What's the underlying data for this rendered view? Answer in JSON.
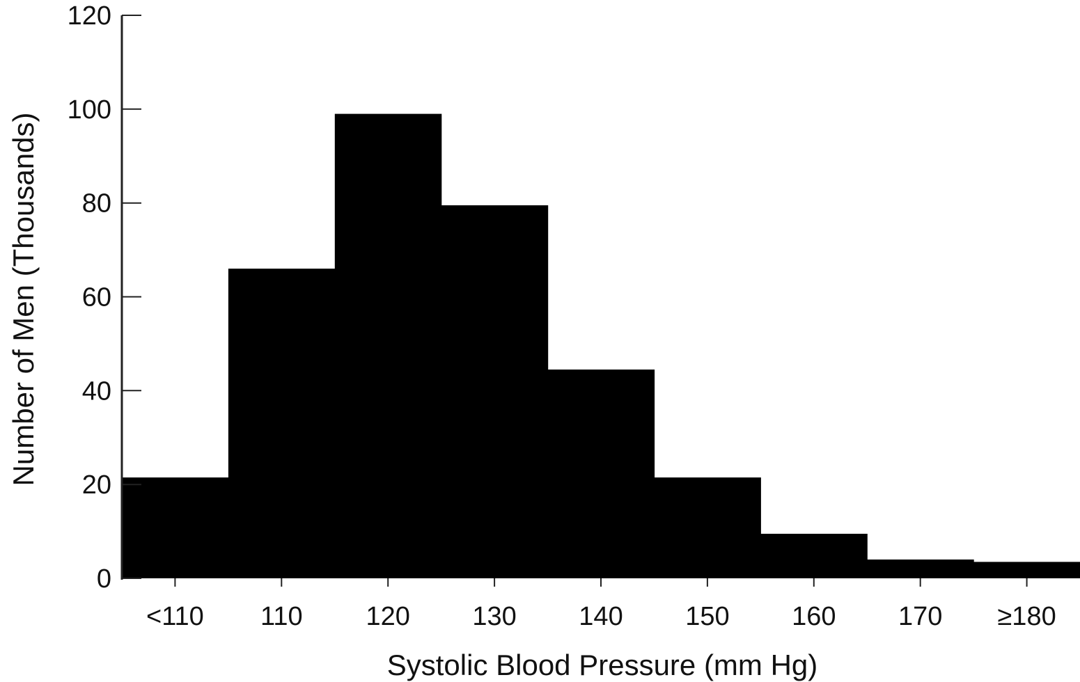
{
  "chart_data": {
    "type": "bar",
    "title": "",
    "xlabel": "Systolic Blood Pressure (mm Hg)",
    "ylabel": "Number of Men (Thousands)",
    "categories": [
      "<110",
      "110",
      "120",
      "130",
      "140",
      "150",
      "160",
      "170",
      "≥180"
    ],
    "values": [
      21.5,
      66,
      99,
      79.5,
      44.5,
      21.5,
      9.5,
      4,
      3.5
    ],
    "yticks": [
      "0",
      "20",
      "40",
      "60",
      "80",
      "100",
      "120"
    ],
    "ylim": [
      0,
      120
    ],
    "grid": false,
    "legend": "none",
    "bar_color": "#000000",
    "axis_color": "#222222"
  }
}
